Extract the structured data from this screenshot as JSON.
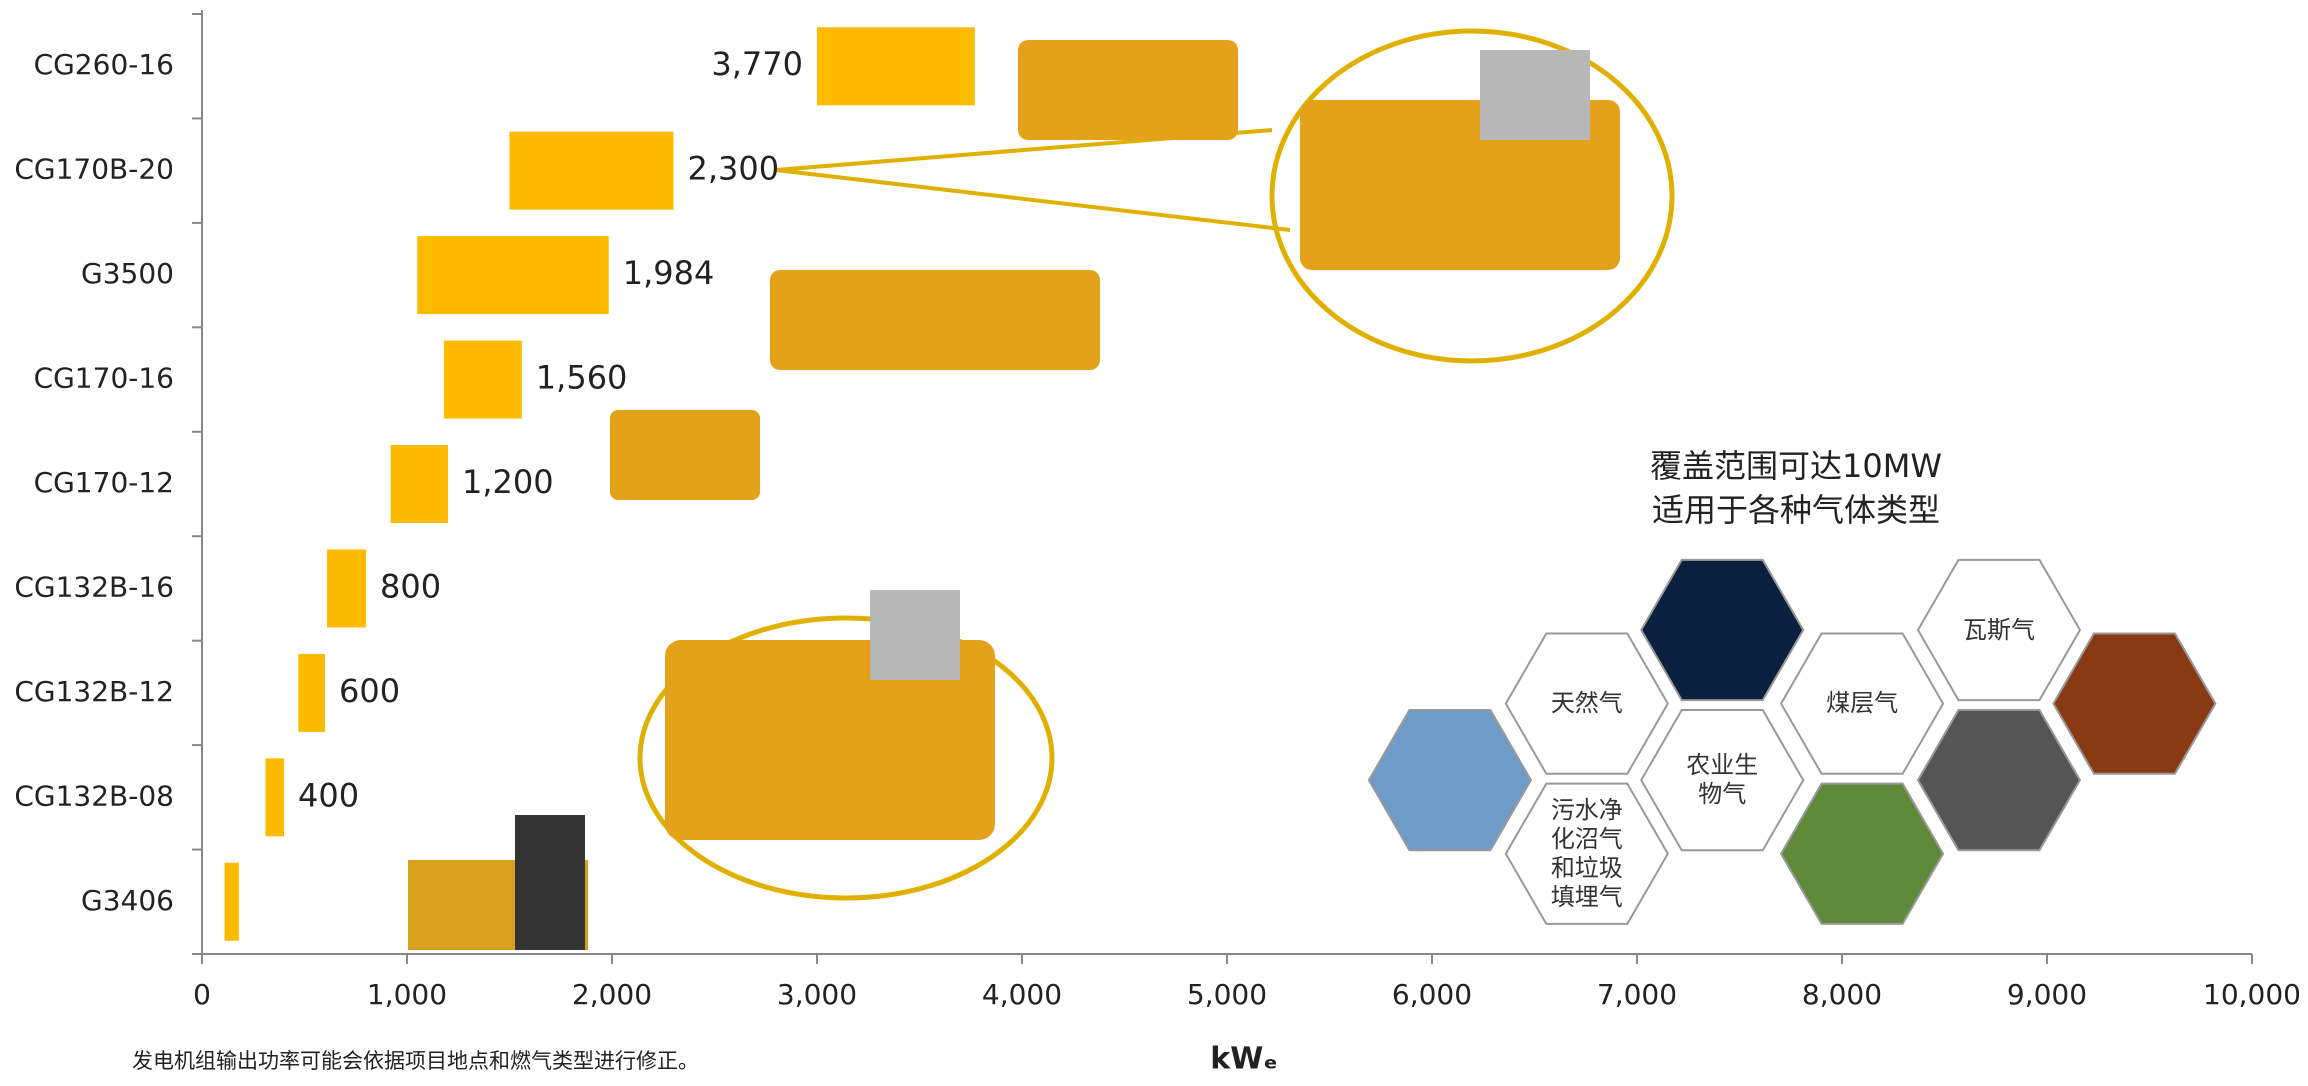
{
  "chart_data": {
    "type": "range-bar",
    "orientation": "horizontal",
    "color": "#FDBB00",
    "categories": [
      "CG260-16",
      "CG170B-20",
      "G3500",
      "CG170-16",
      "CG170-12",
      "CG132B-16",
      "CG132B-12",
      "CG132B-08",
      "G3406"
    ],
    "low": [
      3000,
      1500,
      1050,
      1180,
      920,
      610,
      470,
      310,
      110
    ],
    "values": [
      3770,
      2300,
      1984,
      1560,
      1200,
      800,
      600,
      400,
      180
    ],
    "value_labels": [
      "3,770",
      "2,300",
      "1,984",
      "1,560",
      "1,200",
      "800",
      "600",
      "400",
      null
    ],
    "xlim": [
      0,
      10000
    ],
    "xticks": [
      0,
      {
        "value": 1000,
        "label": "1,000"
      },
      {
        "value": 2000,
        "label": "2,000"
      },
      {
        "value": 3000,
        "label": "3,000"
      },
      {
        "value": 4000,
        "label": "4,000"
      },
      {
        "value": 5000,
        "label": "5,000"
      },
      {
        "value": 6000,
        "label": "6,000"
      },
      {
        "value": 7000,
        "label": "7,000"
      },
      {
        "value": 8000,
        "label": "8,000"
      },
      {
        "value": 9000,
        "label": "9,000"
      },
      {
        "value": 10000,
        "label": "10,000"
      }
    ],
    "xlabel": "kWₑ",
    "footnote": "发电机组输出功率可能会依据项目地点和燃气类型进行修正。",
    "annotation": [
      "覆盖范围可达10MW",
      "适用于各种气体类型"
    ],
    "gas_types": [
      "天然气",
      "煤层气",
      "瓦斯气",
      "农业生物气",
      "污水净化沼气和垃圾填埋气"
    ]
  }
}
